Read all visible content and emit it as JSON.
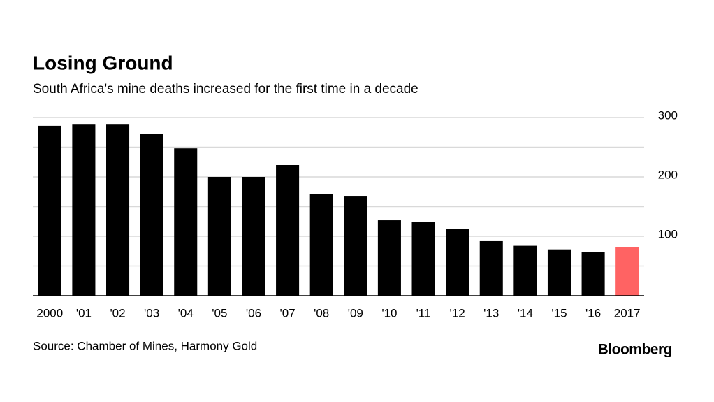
{
  "chart_data": {
    "type": "bar",
    "title": "Losing Ground",
    "subtitle": "South Africa's mine deaths increased for the first time in a decade",
    "categories": [
      "2000",
      "'01",
      "'02",
      "'03",
      "'04",
      "'05",
      "'06",
      "'07",
      "'08",
      "'09",
      "'10",
      "'11",
      "'12",
      "'13",
      "'14",
      "'15",
      "'16",
      "2017"
    ],
    "values": [
      286,
      288,
      288,
      272,
      248,
      200,
      200,
      220,
      171,
      167,
      127,
      124,
      112,
      93,
      84,
      78,
      73,
      82
    ],
    "colors": [
      "#000000",
      "#000000",
      "#000000",
      "#000000",
      "#000000",
      "#000000",
      "#000000",
      "#000000",
      "#000000",
      "#000000",
      "#000000",
      "#000000",
      "#000000",
      "#000000",
      "#000000",
      "#000000",
      "#000000",
      "#ff6363"
    ],
    "ylim": [
      0,
      300
    ],
    "yticks": [
      100,
      200,
      300
    ],
    "ygrid": [
      50,
      100,
      150,
      200,
      250,
      300
    ],
    "grid": true,
    "source": "Source: Chamber of Mines, Harmony Gold",
    "brand": "Bloomberg"
  }
}
